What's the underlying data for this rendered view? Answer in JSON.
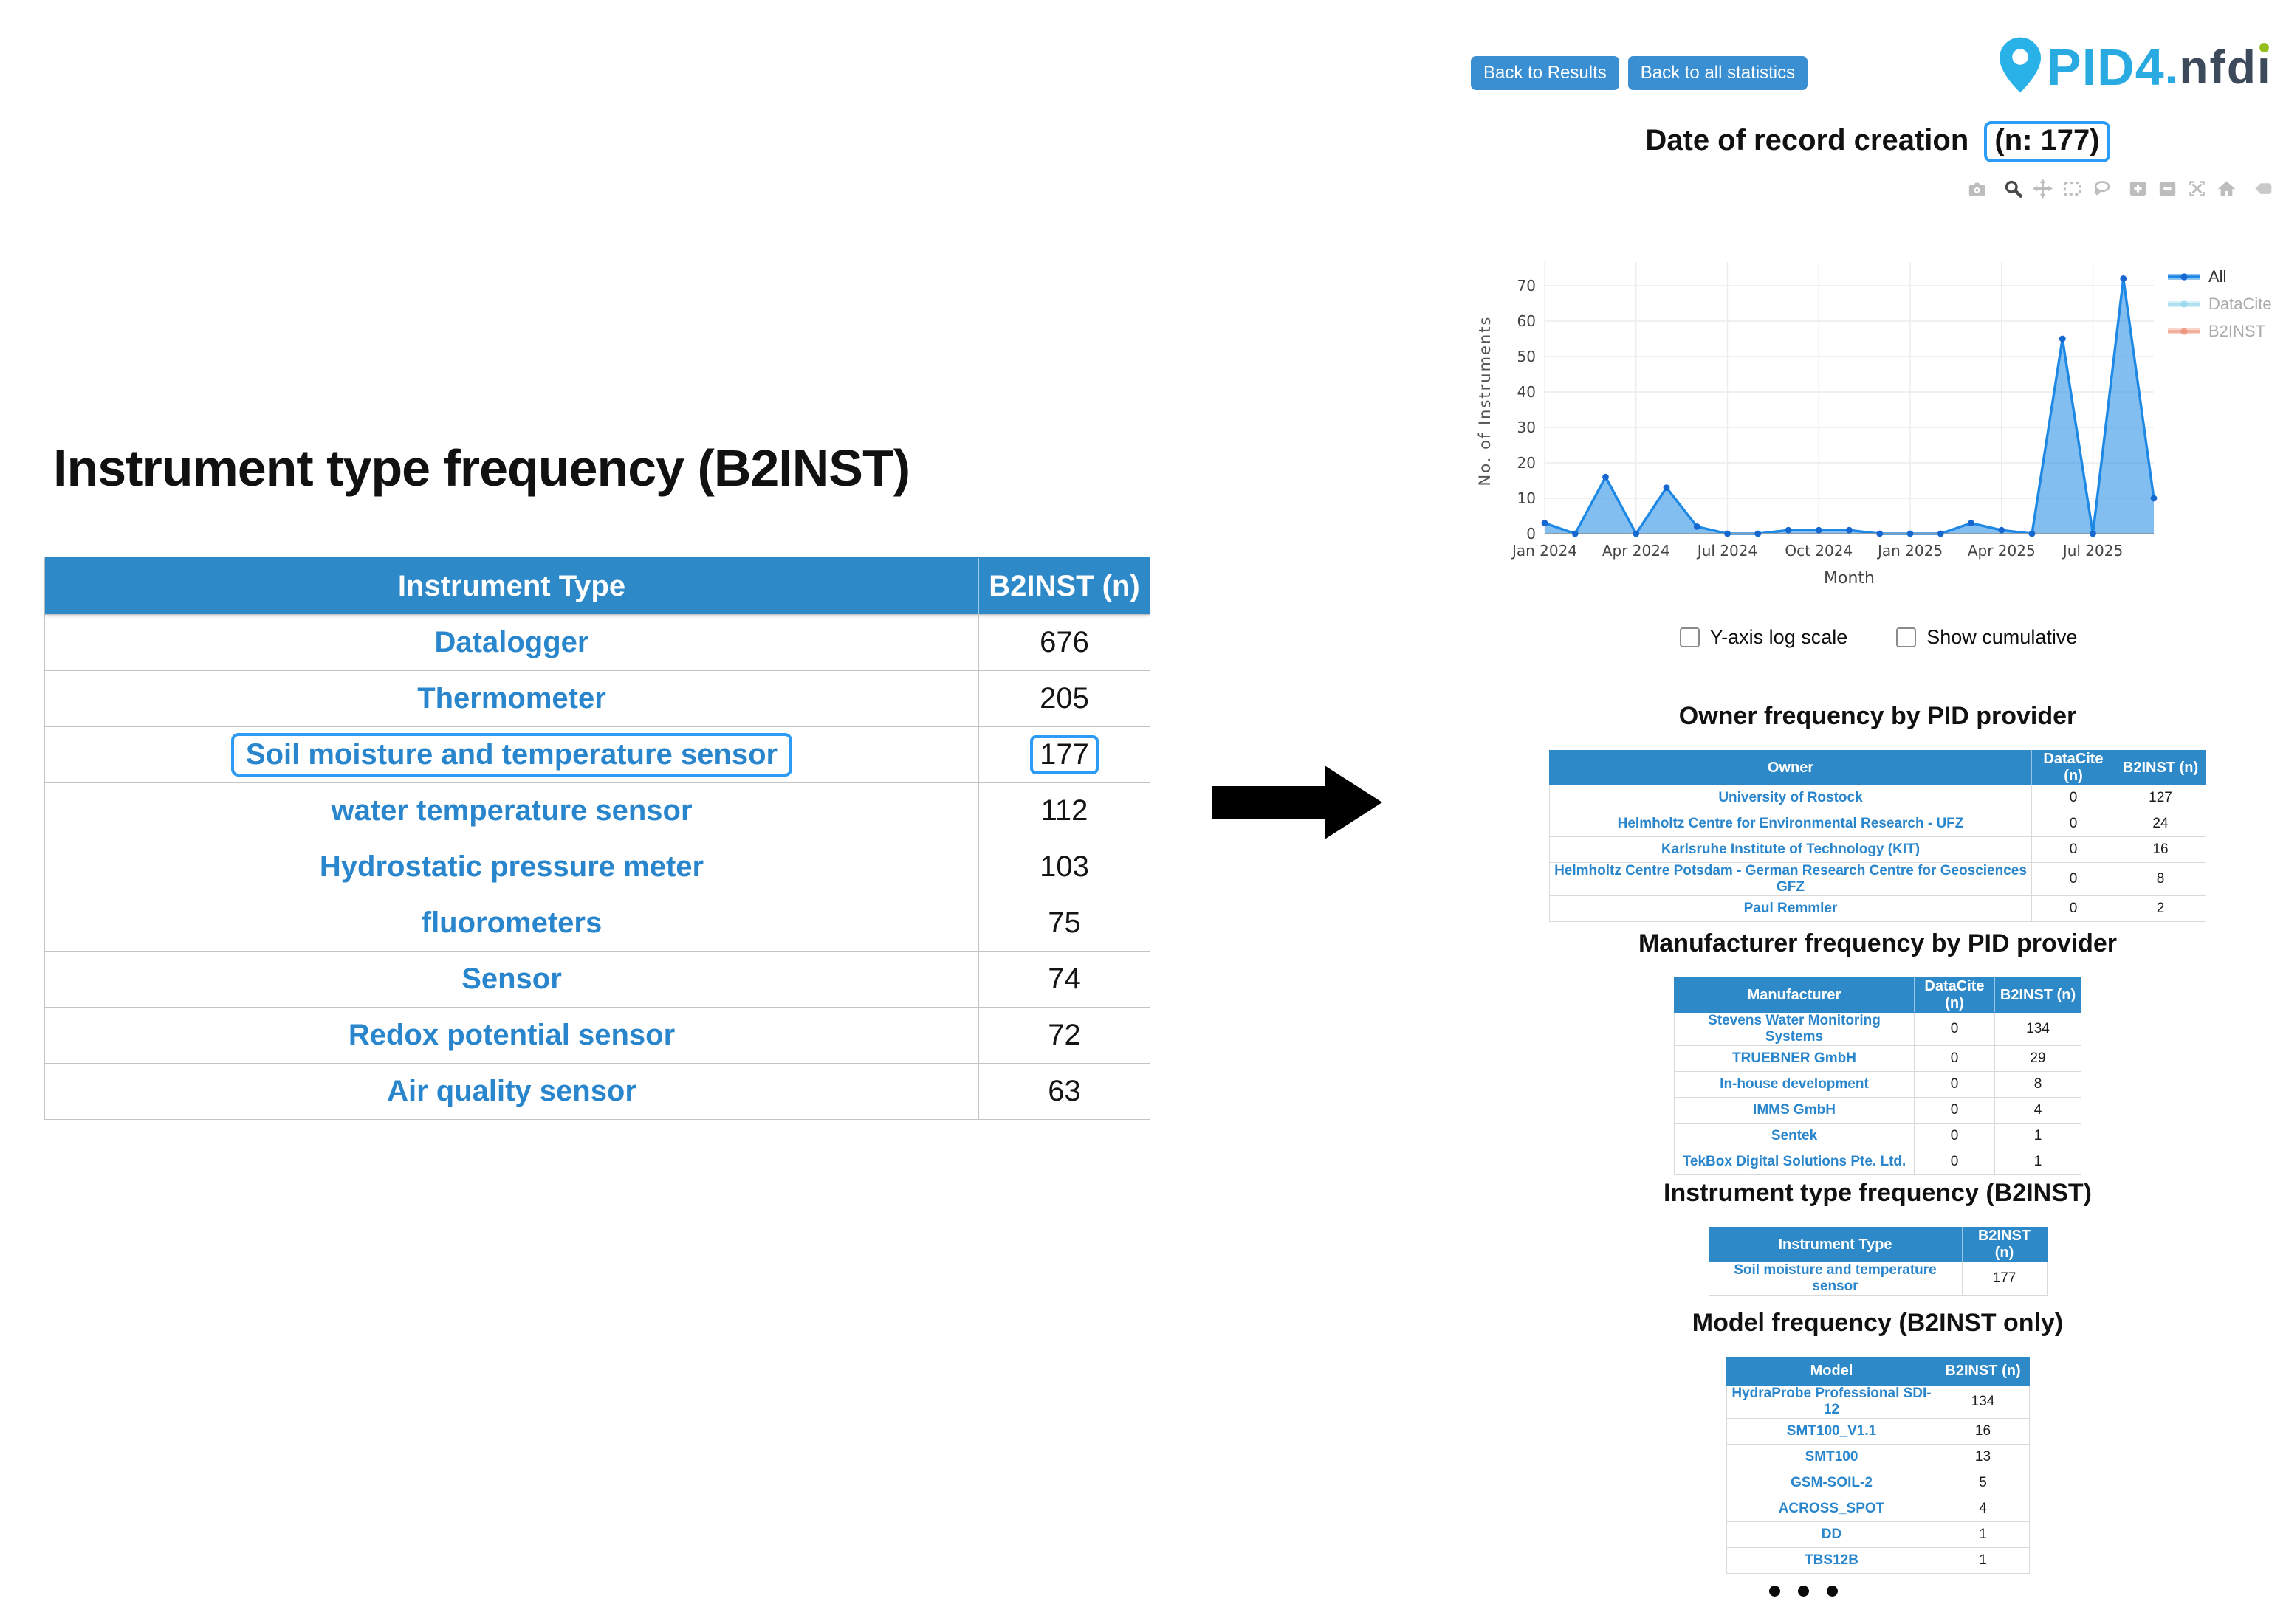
{
  "left_panel": {
    "title": "Instrument type frequency (B2INST)",
    "table": {
      "headers": [
        "Instrument Type",
        "B2INST (n)"
      ],
      "rows": [
        {
          "type": "Datalogger",
          "n": "676",
          "highlighted": false
        },
        {
          "type": "Thermometer",
          "n": "205",
          "highlighted": false
        },
        {
          "type": "Soil moisture and temperature sensor",
          "n": "177",
          "highlighted": true
        },
        {
          "type": "water temperature sensor",
          "n": "112",
          "highlighted": false
        },
        {
          "type": "Hydrostatic pressure meter",
          "n": "103",
          "highlighted": false
        },
        {
          "type": "fluorometers",
          "n": "75",
          "highlighted": false
        },
        {
          "type": "Sensor",
          "n": "74",
          "highlighted": false
        },
        {
          "type": "Redox potential sensor",
          "n": "72",
          "highlighted": false
        },
        {
          "type": "Air quality sensor",
          "n": "63",
          "highlighted": false
        }
      ]
    }
  },
  "right_panel": {
    "nav_buttons": [
      {
        "label": "Back to Results"
      },
      {
        "label": "Back to all statistics"
      }
    ],
    "logo": {
      "text_primary": "PID4",
      "text_dot": ".",
      "text_secondary_stem": "nfd",
      "color_primary": "#29abe2",
      "color_secondary": "#3d4a5c",
      "color_i_dot": "#93c01f"
    },
    "page_title": {
      "text": "Date of record creation",
      "highlighted_count": "(n: 177)"
    },
    "chart_toolbar": [
      "camera",
      "zoom",
      "pan",
      "box-select",
      "lasso",
      "zoom-in",
      "zoom-out",
      "autoscale",
      "home",
      "plotly-logo"
    ],
    "chart_data": {
      "type": "area",
      "title": "Date of record creation (n: 177)",
      "xlabel": "Month",
      "ylabel": "No. of Instruments",
      "x": [
        "Jan 2024",
        "Feb 2024",
        "Mar 2024",
        "Apr 2024",
        "May 2024",
        "Jun 2024",
        "Jul 2024",
        "Aug 2024",
        "Sep 2024",
        "Oct 2024",
        "Nov 2024",
        "Dec 2024",
        "Jan 2025",
        "Feb 2025",
        "Mar 2025",
        "Apr 2025",
        "May 2025",
        "Jun 2025",
        "Jul 2025",
        "Aug 2025",
        "Sep 2025"
      ],
      "series": [
        {
          "name": "All",
          "color": "#1e88e5",
          "marker_color": "#1668d0",
          "visible": true,
          "values": [
            3,
            0,
            16,
            0,
            13,
            2,
            0,
            0,
            1,
            1,
            1,
            0,
            0,
            0,
            3,
            1,
            0,
            55,
            0,
            72,
            10
          ]
        },
        {
          "name": "DataCite",
          "color": "#8fd4ea",
          "marker_color": "#8fd4ea",
          "visible": false,
          "values": []
        },
        {
          "name": "B2INST",
          "color": "#ec8a70",
          "marker_color": "#ec8a70",
          "visible": false,
          "values": []
        }
      ],
      "ylim": [
        0,
        75
      ],
      "yticks": [
        0,
        10,
        20,
        30,
        40,
        50,
        60,
        70
      ],
      "xticks_shown": [
        "Jan 2024",
        "Apr 2024",
        "Jul 2024",
        "Oct 2024",
        "Jan 2025",
        "Apr 2025",
        "Jul 2025"
      ],
      "grid": true,
      "legend_position": "right"
    },
    "chart_options": [
      {
        "key": "log-scale",
        "label": "Y-axis log scale",
        "checked": false
      },
      {
        "key": "show-cumulative",
        "label": "Show cumulative",
        "checked": false
      }
    ],
    "sections": [
      {
        "key": "owner-frequency",
        "title": "Owner frequency by PID provider",
        "headers": [
          "Owner",
          "DataCite (n)",
          "B2INST (n)"
        ],
        "rows": [
          [
            "University of Rostock",
            "0",
            "127"
          ],
          [
            "Helmholtz Centre for Environmental Research - UFZ",
            "0",
            "24"
          ],
          [
            "Karlsruhe Institute of Technology (KIT)",
            "0",
            "16"
          ],
          [
            "Helmholtz Centre Potsdam - German Research Centre for Geosciences GFZ",
            "0",
            "8"
          ],
          [
            "Paul Remmler",
            "0",
            "2"
          ]
        ]
      },
      {
        "key": "manufacturer-frequency",
        "title": "Manufacturer frequency by PID provider",
        "headers": [
          "Manufacturer",
          "DataCite (n)",
          "B2INST (n)"
        ],
        "rows": [
          [
            "Stevens Water Monitoring Systems",
            "0",
            "134"
          ],
          [
            "TRUEBNER GmbH",
            "0",
            "29"
          ],
          [
            "In-house development",
            "0",
            "8"
          ],
          [
            "IMMS GmbH",
            "0",
            "4"
          ],
          [
            "Sentek",
            "0",
            "1"
          ],
          [
            "TekBox Digital Solutions Pte. Ltd.",
            "0",
            "1"
          ]
        ]
      },
      {
        "key": "instrument-type-frequency",
        "title": "Instrument type frequency (B2INST)",
        "headers": [
          "Instrument Type",
          "B2INST (n)"
        ],
        "rows": [
          [
            "Soil moisture and temperature sensor",
            "177"
          ]
        ]
      },
      {
        "key": "model-frequency",
        "title": "Model frequency (B2INST only)",
        "headers": [
          "Model",
          "B2INST (n)"
        ],
        "rows": [
          [
            "HydraProbe Professional SDI-12",
            "134"
          ],
          [
            "SMT100_V1.1",
            "16"
          ],
          [
            "SMT100",
            "13"
          ],
          [
            "GSM-SOIL-2",
            "5"
          ],
          [
            "ACROSS_SPOT",
            "4"
          ],
          [
            "DD",
            "1"
          ],
          [
            "TBS12B",
            "1"
          ]
        ]
      }
    ],
    "ellipsis_dots": 3
  }
}
